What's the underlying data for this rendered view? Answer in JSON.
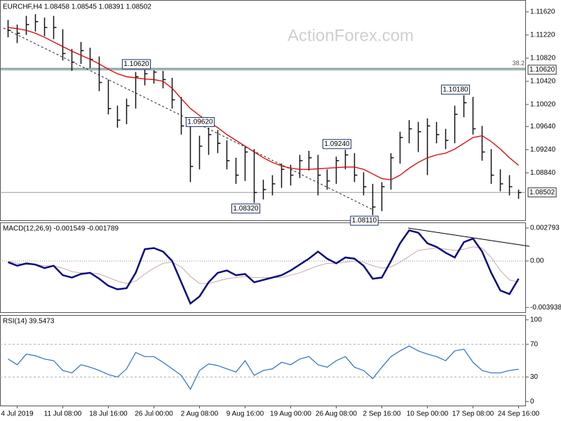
{
  "chart_data": [
    {
      "type": "ohlc",
      "title": "EURCHF,H4 1.08458 1.08545 1.08391 1.08502",
      "watermark": "ActionForex.com",
      "color": "#111111",
      "categories": [
        null,
        "4 Jul 2019",
        null,
        null,
        null,
        null,
        "11 Jul 08:00",
        null,
        null,
        null,
        null,
        "18 Jul 16:00",
        null,
        null,
        null,
        null,
        "26 Jul 00:00",
        null,
        null,
        null,
        null,
        "2 Aug 08:00",
        null,
        null,
        null,
        null,
        "9 Aug 16:00",
        null,
        null,
        null,
        null,
        "19 Aug 00:00",
        null,
        null,
        null,
        null,
        "26 Aug 08:00",
        null,
        null,
        null,
        null,
        "2 Sep 16:00",
        null,
        null,
        null,
        null,
        "10 Sep 00:00",
        null,
        null,
        null,
        null,
        "17 Sep 08:00",
        null,
        null,
        null,
        null,
        "24 Sep 16:00"
      ],
      "high": [
        1.1148,
        1.114,
        1.1155,
        1.1158,
        1.1152,
        1.1155,
        1.1132,
        1.1098,
        1.111,
        1.11,
        1.1085,
        1.1045,
        1.1,
        1.1012,
        1.1058,
        1.1062,
        1.1061,
        1.106,
        1.1048,
        1.1015,
        1.0968,
        1.0948,
        1.0962,
        1.0958,
        1.094,
        1.091,
        1.093,
        1.0925,
        1.0872,
        1.088,
        1.09,
        1.0898,
        1.0915,
        1.0922,
        1.0915,
        1.089,
        1.0912,
        1.0924,
        1.0918,
        1.0885,
        1.0865,
        1.0868,
        1.0918,
        1.0955,
        1.0975,
        1.0972,
        1.0978,
        1.0972,
        1.096,
        1.1,
        1.1018,
        1.1015,
        1.0965,
        1.0925,
        1.089,
        1.088,
        1.0855
      ],
      "low": [
        1.1118,
        1.1108,
        1.1122,
        1.1128,
        1.112,
        1.1115,
        1.1078,
        1.106,
        1.1072,
        1.1065,
        1.1025,
        1.0985,
        1.0962,
        1.0968,
        1.0995,
        1.1035,
        1.1038,
        1.103,
        1.0995,
        1.095,
        1.0868,
        1.089,
        1.0915,
        1.0918,
        1.089,
        1.0865,
        1.087,
        1.0832,
        1.0838,
        1.0845,
        1.0858,
        1.0862,
        1.0875,
        1.0888,
        1.0845,
        1.0855,
        1.0865,
        1.089,
        1.0868,
        1.0845,
        1.0811,
        1.0818,
        1.0855,
        1.09,
        1.0935,
        1.092,
        1.088,
        1.0935,
        1.0925,
        1.0935,
        1.098,
        1.095,
        1.0905,
        1.0865,
        1.0852,
        1.0845,
        1.0839
      ],
      "close": [
        1.113,
        1.1125,
        1.114,
        1.1145,
        1.1135,
        1.1135,
        1.109,
        1.1075,
        1.1095,
        1.108,
        1.104,
        1.0995,
        1.0975,
        1.1,
        1.105,
        1.1055,
        1.1058,
        1.1045,
        1.101,
        1.0965,
        1.0895,
        1.093,
        1.095,
        1.0935,
        1.0905,
        1.088,
        1.092,
        1.085,
        1.0855,
        1.0865,
        1.089,
        1.088,
        1.0905,
        1.091,
        1.088,
        1.087,
        1.0905,
        1.0915,
        1.088,
        1.086,
        1.0825,
        1.086,
        1.091,
        1.0945,
        1.096,
        1.0955,
        1.0965,
        1.095,
        1.094,
        1.0985,
        1.1005,
        1.096,
        1.092,
        1.088,
        1.0865,
        1.086,
        1.085
      ],
      "ma": {
        "color": "#e00000",
        "values": [
          1.1135,
          1.1133,
          1.113,
          1.1125,
          1.1118,
          1.111,
          1.1102,
          1.1094,
          1.1087,
          1.108,
          1.1072,
          1.1063,
          1.1055,
          1.105,
          1.1048,
          1.1046,
          1.1045,
          1.1042,
          1.103,
          1.1012,
          1.0995,
          1.0983,
          1.0972,
          1.0962,
          1.095,
          1.094,
          1.093,
          1.092,
          1.091,
          1.0902,
          1.0896,
          1.0892,
          1.089,
          1.089,
          1.0891,
          1.0892,
          1.0893,
          1.0894,
          1.0894,
          1.089,
          1.0882,
          1.0874,
          1.0872,
          1.088,
          1.0892,
          1.0902,
          1.091,
          1.0915,
          1.0918,
          1.0925,
          1.0935,
          1.0945,
          1.0948,
          1.0938,
          1.0925,
          1.091,
          1.0897
        ]
      },
      "ylim": [
        1.0802,
        1.118
      ],
      "yticks": [
        {
          "value": 1.1162,
          "label": "1.11620"
        },
        {
          "value": 1.1122,
          "label": "1.11220"
        },
        {
          "value": 1.1082,
          "label": "1.10820"
        },
        {
          "value": 1.1042,
          "label": "1.10420"
        },
        {
          "value": 1.1002,
          "label": "1.10020"
        },
        {
          "value": 1.0964,
          "label": "1.09640"
        },
        {
          "value": 1.0924,
          "label": "1.09240"
        },
        {
          "value": 1.0884,
          "label": "1.08840"
        }
      ],
      "annotations": [
        {
          "value": 1.1062,
          "label": "1.10620"
        },
        {
          "value": 1.0962,
          "label": "1.09620"
        },
        {
          "value": 1.0832,
          "label": "1.08320"
        },
        {
          "value": 1.0924,
          "label": "1.09240"
        },
        {
          "value": 1.0811,
          "label": "1.08110"
        },
        {
          "value": 1.1018,
          "label": "1.10180"
        }
      ],
      "fib_level": {
        "value": 1.1062,
        "label": "1.10620",
        "name": "38.2"
      },
      "last_price": {
        "value": 1.08502,
        "label": "1.08502"
      }
    },
    {
      "type": "macd",
      "title": "MACD(12,26,9) -0.001549 -0.001789",
      "macd": {
        "color": "#0a0a80",
        "values": [
          -0.0001,
          -0.0004,
          -0.0002,
          -0.0003,
          -0.0006,
          -0.0004,
          -0.0012,
          -0.0014,
          -0.0011,
          -0.001,
          -0.0015,
          -0.0021,
          -0.0024,
          -0.0023,
          -0.001,
          0.001,
          0.0011,
          0.0008,
          0.0,
          -0.0018,
          -0.0036,
          -0.003,
          -0.0018,
          -0.001,
          -0.0008,
          -0.0012,
          -0.0011,
          -0.0018,
          -0.0016,
          -0.0014,
          -0.0012,
          -0.0008,
          -0.0003,
          0.0002,
          0.0008,
          0.0002,
          -0.0002,
          0.0003,
          0.0002,
          -0.0004,
          -0.0015,
          -0.0014,
          0.0,
          0.0015,
          0.0026,
          0.0024,
          0.0015,
          0.0012,
          0.0007,
          0.0003,
          0.0016,
          0.0019,
          0.0008,
          -0.001,
          -0.0025,
          -0.0028,
          -0.0015
        ]
      },
      "signal": {
        "color": "#c8a8a8",
        "values": [
          0.0,
          -0.0002,
          -0.0003,
          -0.0003,
          -0.0004,
          -0.0004,
          -0.0006,
          -0.0009,
          -0.001,
          -0.001,
          -0.0011,
          -0.0014,
          -0.0017,
          -0.0019,
          -0.0017,
          -0.0011,
          -0.0006,
          -0.0002,
          -0.0001,
          -0.0005,
          -0.0013,
          -0.0019,
          -0.0019,
          -0.0017,
          -0.0015,
          -0.0014,
          -0.0013,
          -0.0014,
          -0.0014,
          -0.0014,
          -0.0014,
          -0.0012,
          -0.001,
          -0.0007,
          -0.0004,
          -0.0002,
          -0.0002,
          -0.0001,
          0.0,
          -0.0001,
          -0.0004,
          -0.0006,
          -0.0005,
          -0.0001,
          0.0004,
          0.0009,
          0.001,
          0.0011,
          0.001,
          0.0009,
          0.001,
          0.0012,
          0.0011,
          0.0003,
          -0.0008,
          -0.0016,
          -0.0018
        ]
      },
      "ylim": [
        -0.00434,
        0.00321
      ],
      "yticks": [
        0.002793,
        {
          "value": 0,
          "label": "0.00"
        },
        -0.003938
      ],
      "levels": [
        0
      ]
    },
    {
      "type": "rsi",
      "title": "RSI(14) 39.5473",
      "color": "#2a6fc9",
      "values": [
        52,
        45,
        58,
        56,
        52,
        50,
        38,
        35,
        45,
        42,
        38,
        33,
        30,
        40,
        60,
        55,
        55,
        48,
        40,
        32,
        15,
        38,
        46,
        44,
        40,
        36,
        50,
        32,
        38,
        40,
        48,
        45,
        52,
        55,
        45,
        42,
        50,
        55,
        42,
        38,
        28,
        42,
        55,
        62,
        68,
        62,
        58,
        55,
        50,
        62,
        64,
        48,
        38,
        35,
        35,
        38,
        39.5
      ],
      "ylim": [
        -5,
        105
      ],
      "yticks": [
        100,
        70,
        30,
        0
      ],
      "levels": [
        70,
        30
      ]
    }
  ]
}
